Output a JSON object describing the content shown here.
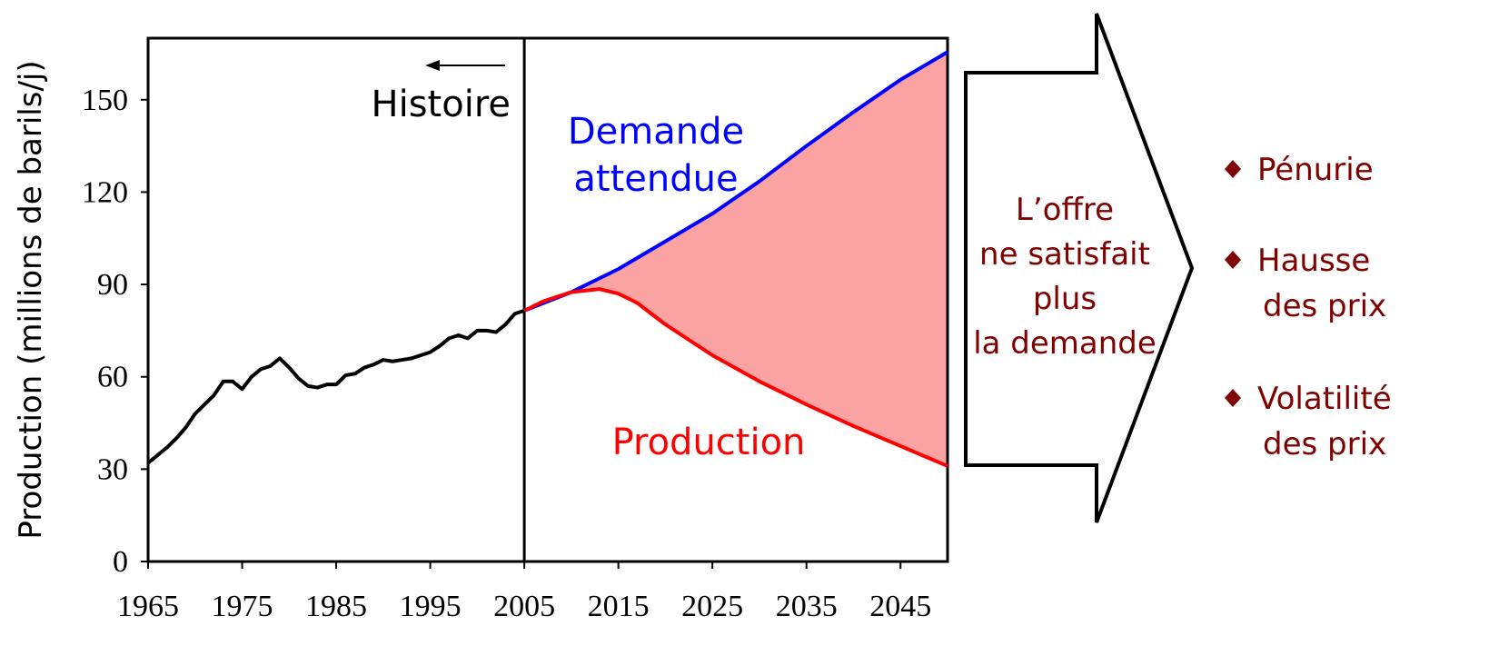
{
  "chart_data": {
    "type": "line",
    "ylabel": "Production (millions de barils/j)",
    "xlim": [
      1965,
      2050
    ],
    "ylim": [
      0,
      170
    ],
    "xticks": [
      1965,
      1975,
      1985,
      1995,
      2005,
      2015,
      2025,
      2035,
      2045
    ],
    "yticks": [
      0,
      30,
      60,
      90,
      120,
      150
    ],
    "divider_x": 2005,
    "series": [
      {
        "color": "#000000",
        "x": [
          1965,
          1966,
          1967,
          1968,
          1969,
          1970,
          1971,
          1972,
          1973,
          1974,
          1975,
          1976,
          1977,
          1978,
          1979,
          1980,
          1981,
          1982,
          1983,
          1984,
          1985,
          1986,
          1987,
          1988,
          1989,
          1990,
          1991,
          1992,
          1993,
          1994,
          1995,
          1996,
          1997,
          1998,
          1999,
          2000,
          2001,
          2002,
          2003,
          2004,
          2005
        ],
        "values": [
          32,
          34.5,
          37,
          40,
          43.5,
          48,
          51,
          54,
          58.5,
          58.5,
          56,
          60,
          62.5,
          63.5,
          66,
          63,
          59.5,
          57,
          56.5,
          57.5,
          57.5,
          60.5,
          61,
          63,
          64,
          65.5,
          65,
          65.5,
          66,
          67,
          68,
          70,
          72.5,
          73.5,
          72.5,
          75,
          75,
          74.5,
          77,
          80.5,
          81.5
        ]
      },
      {
        "name": "Demande attendue",
        "color": "#0000ff",
        "x": [
          2005,
          2010,
          2015,
          2020,
          2025,
          2030,
          2035,
          2040,
          2045,
          2050
        ],
        "values": [
          81.5,
          87.5,
          95,
          104,
          113,
          123.5,
          135,
          146,
          156.5,
          165.5
        ]
      },
      {
        "name": "Production",
        "color": "#ff0000",
        "fill": "#fba3a3",
        "x": [
          2005,
          2007,
          2010,
          2013,
          2015,
          2017,
          2020,
          2025,
          2030,
          2035,
          2040,
          2045,
          2050
        ],
        "values": [
          81.5,
          84.5,
          87.5,
          88.5,
          87,
          84,
          77,
          67,
          58.5,
          51,
          44,
          37.5,
          31
        ]
      }
    ],
    "annotations": {
      "history": "Histoire"
    },
    "arrow_text": [
      "L’offre",
      "ne satisfait",
      "plus",
      "la demande"
    ],
    "consequences": [
      [
        "Pénurie"
      ],
      [
        "Hausse",
        "des prix"
      ],
      [
        "Volatilité",
        "des prix"
      ]
    ]
  }
}
